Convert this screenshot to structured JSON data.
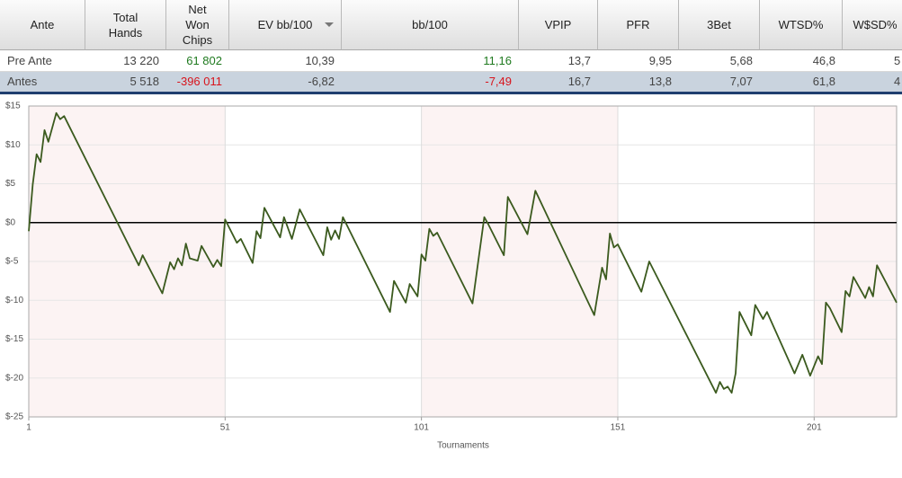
{
  "table": {
    "columns": [
      "Ante",
      "Total\nHands",
      "Net\nWon\nChips",
      "EV bb/100",
      "bb/100",
      "VPIP",
      "PFR",
      "3Bet",
      "WTSD%",
      "W$SD%"
    ],
    "rows": [
      [
        "Pre Ante",
        "13 220",
        "61 802",
        "10,39",
        "11,16",
        "13,7",
        "9,95",
        "5,68",
        "46,8",
        "5"
      ],
      [
        "Antes",
        "5 518",
        "-396 011",
        "-6,82",
        "-7,49",
        "16,7",
        "13,8",
        "7,07",
        "61,8",
        "4"
      ]
    ]
  },
  "chart_data": {
    "type": "line",
    "x_label": "Tournaments",
    "color": "#3b5a1e",
    "grid": true,
    "zero_line": true,
    "xlim": [
      1,
      222
    ],
    "xticks": [
      1,
      51,
      101,
      151,
      201
    ],
    "ylim": [
      -25,
      15
    ],
    "yticks": [
      {
        "value": 15,
        "label": "$15"
      },
      {
        "value": 10,
        "label": "$10"
      },
      {
        "value": 5,
        "label": "$5"
      },
      {
        "value": 0,
        "label": "$0"
      },
      {
        "value": -5,
        "label": "$-5"
      },
      {
        "value": -10,
        "label": "$-10"
      },
      {
        "value": -15,
        "label": "$-15"
      },
      {
        "value": -20,
        "label": "$-20"
      },
      {
        "value": -25,
        "label": "$-25"
      }
    ],
    "x": [
      1,
      2,
      3,
      4,
      5,
      6,
      8,
      9,
      10,
      29,
      30,
      35,
      37,
      38,
      39,
      40,
      41,
      42,
      44,
      45,
      48,
      49,
      50,
      51,
      54,
      55,
      58,
      59,
      60,
      61,
      65,
      66,
      68,
      70,
      76,
      77,
      78,
      79,
      80,
      81,
      93,
      94,
      97,
      98,
      100,
      101,
      102,
      103,
      104,
      105,
      114,
      117,
      118,
      122,
      123,
      128,
      130,
      145,
      147,
      148,
      149,
      150,
      151,
      157,
      159,
      176,
      177,
      178,
      179,
      180,
      181,
      182,
      185,
      186,
      188,
      189,
      196,
      198,
      200,
      202,
      203,
      204,
      205,
      208,
      209,
      210,
      211,
      214,
      215,
      216,
      217,
      222
    ],
    "values": [
      -1.1,
      4.9,
      8.8,
      7.8,
      11.9,
      10.4,
      14.1,
      13.3,
      13.7,
      -5.5,
      -4.2,
      -9.1,
      -5.1,
      -6.0,
      -4.6,
      -5.5,
      -2.7,
      -4.6,
      -4.9,
      -3.0,
      -5.7,
      -4.8,
      -5.6,
      0.4,
      -2.6,
      -2.1,
      -5.2,
      -1.1,
      -2.0,
      1.9,
      -1.9,
      0.7,
      -2.1,
      1.7,
      -4.2,
      -0.6,
      -2.2,
      -1.0,
      -2.1,
      0.7,
      -11.5,
      -7.5,
      -10.3,
      -7.9,
      -9.5,
      -4.1,
      -4.9,
      -0.8,
      -1.7,
      -1.3,
      -10.4,
      0.7,
      -0.2,
      -4.2,
      3.3,
      -1.5,
      4.1,
      -11.9,
      -5.8,
      -7.3,
      -1.4,
      -3.2,
      -2.8,
      -8.9,
      -5.0,
      -21.9,
      -20.5,
      -21.4,
      -21.1,
      -21.9,
      -19.4,
      -11.5,
      -14.5,
      -10.6,
      -12.4,
      -11.5,
      -19.4,
      -17.0,
      -19.7,
      -17.2,
      -18.2,
      -10.3,
      -11.0,
      -14.1,
      -8.8,
      -9.5,
      -7.0,
      -9.7,
      -8.3,
      -9.5,
      -5.5,
      -10.3
    ]
  }
}
